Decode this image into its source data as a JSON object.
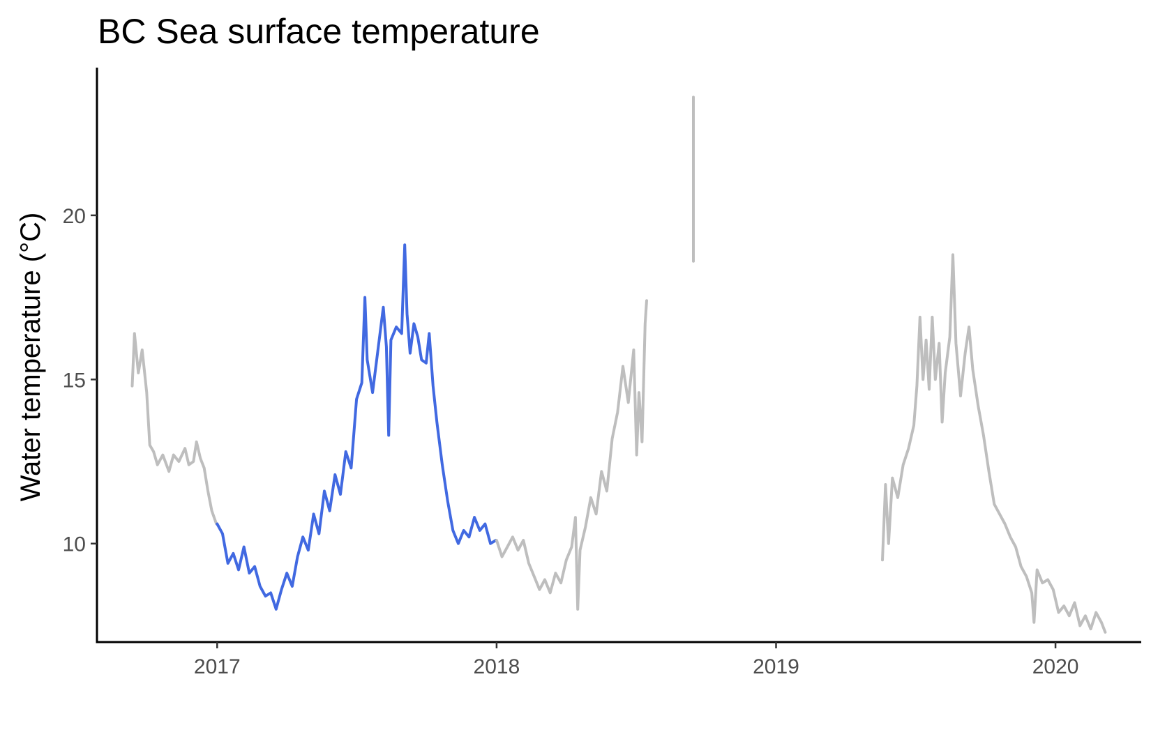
{
  "chart_data": {
    "type": "line",
    "title": "BC Sea surface temperature",
    "xlabel": "",
    "ylabel": "Water temperature  (°C)",
    "x_type": "date",
    "xlim": [
      "2016-07-28",
      "2020-04-22"
    ],
    "ylim": [
      7.0,
      24.5
    ],
    "x_ticks": [
      {
        "value": "2017-01-01",
        "label": "2017"
      },
      {
        "value": "2018-01-01",
        "label": "2018"
      },
      {
        "value": "2019-01-01",
        "label": "2019"
      },
      {
        "value": "2020-01-01",
        "label": "2020"
      }
    ],
    "y_ticks": [
      {
        "value": 10,
        "label": "10"
      },
      {
        "value": 15,
        "label": "15"
      },
      {
        "value": 20,
        "label": "20"
      }
    ],
    "grid": false,
    "legend": "none",
    "series": [
      {
        "color": "#bebebe",
        "points": [
          [
            "2016-09-12",
            14.8
          ],
          [
            "2016-09-15",
            16.4
          ],
          [
            "2016-09-20",
            15.2
          ],
          [
            "2016-09-25",
            15.9
          ],
          [
            "2016-10-01",
            14.6
          ],
          [
            "2016-10-05",
            13.0
          ],
          [
            "2016-10-10",
            12.8
          ],
          [
            "2016-10-15",
            12.4
          ],
          [
            "2016-10-22",
            12.7
          ],
          [
            "2016-10-30",
            12.2
          ],
          [
            "2016-11-05",
            12.7
          ],
          [
            "2016-11-12",
            12.5
          ],
          [
            "2016-11-20",
            12.9
          ],
          [
            "2016-11-25",
            12.4
          ],
          [
            "2016-12-01",
            12.5
          ],
          [
            "2016-12-05",
            13.1
          ],
          [
            "2016-12-10",
            12.6
          ],
          [
            "2016-12-15",
            12.3
          ],
          [
            "2016-12-20",
            11.6
          ],
          [
            "2016-12-25",
            11.0
          ],
          [
            "2016-12-31",
            10.6
          ]
        ]
      },
      {
        "color": "#4169e1",
        "points": [
          [
            "2017-01-01",
            10.6
          ],
          [
            "2017-01-08",
            10.3
          ],
          [
            "2017-01-15",
            9.4
          ],
          [
            "2017-01-22",
            9.7
          ],
          [
            "2017-01-29",
            9.2
          ],
          [
            "2017-02-05",
            9.9
          ],
          [
            "2017-02-12",
            9.1
          ],
          [
            "2017-02-19",
            9.3
          ],
          [
            "2017-02-26",
            8.7
          ],
          [
            "2017-03-05",
            8.4
          ],
          [
            "2017-03-12",
            8.5
          ],
          [
            "2017-03-19",
            8.0
          ],
          [
            "2017-03-26",
            8.6
          ],
          [
            "2017-04-02",
            9.1
          ],
          [
            "2017-04-09",
            8.7
          ],
          [
            "2017-04-16",
            9.6
          ],
          [
            "2017-04-23",
            10.2
          ],
          [
            "2017-04-30",
            9.8
          ],
          [
            "2017-05-07",
            10.9
          ],
          [
            "2017-05-14",
            10.3
          ],
          [
            "2017-05-21",
            11.6
          ],
          [
            "2017-05-28",
            11.0
          ],
          [
            "2017-06-04",
            12.1
          ],
          [
            "2017-06-11",
            11.5
          ],
          [
            "2017-06-18",
            12.8
          ],
          [
            "2017-06-25",
            12.3
          ],
          [
            "2017-07-02",
            14.4
          ],
          [
            "2017-07-09",
            14.9
          ],
          [
            "2017-07-13",
            17.5
          ],
          [
            "2017-07-16",
            15.6
          ],
          [
            "2017-07-23",
            14.6
          ],
          [
            "2017-07-30",
            15.9
          ],
          [
            "2017-08-06",
            17.2
          ],
          [
            "2017-08-10",
            16.0
          ],
          [
            "2017-08-13",
            13.3
          ],
          [
            "2017-08-16",
            16.2
          ],
          [
            "2017-08-23",
            16.6
          ],
          [
            "2017-08-30",
            16.4
          ],
          [
            "2017-09-03",
            19.1
          ],
          [
            "2017-09-06",
            17.0
          ],
          [
            "2017-09-10",
            15.8
          ],
          [
            "2017-09-15",
            16.7
          ],
          [
            "2017-09-20",
            16.3
          ],
          [
            "2017-09-25",
            15.6
          ],
          [
            "2017-10-01",
            15.5
          ],
          [
            "2017-10-05",
            16.4
          ],
          [
            "2017-10-10",
            14.8
          ],
          [
            "2017-10-15",
            13.7
          ],
          [
            "2017-10-22",
            12.4
          ],
          [
            "2017-10-29",
            11.3
          ],
          [
            "2017-11-05",
            10.4
          ],
          [
            "2017-11-12",
            10.0
          ],
          [
            "2017-11-19",
            10.4
          ],
          [
            "2017-11-26",
            10.2
          ],
          [
            "2017-12-03",
            10.8
          ],
          [
            "2017-12-10",
            10.4
          ],
          [
            "2017-12-17",
            10.6
          ],
          [
            "2017-12-24",
            10.0
          ],
          [
            "2017-12-31",
            10.1
          ]
        ]
      },
      {
        "color": "#bebebe",
        "points": [
          [
            "2018-01-01",
            10.1
          ],
          [
            "2018-01-08",
            9.6
          ],
          [
            "2018-01-15",
            9.9
          ],
          [
            "2018-01-22",
            10.2
          ],
          [
            "2018-01-29",
            9.8
          ],
          [
            "2018-02-05",
            10.1
          ],
          [
            "2018-02-12",
            9.4
          ],
          [
            "2018-02-19",
            9.0
          ],
          [
            "2018-02-26",
            8.6
          ],
          [
            "2018-03-05",
            8.9
          ],
          [
            "2018-03-12",
            8.5
          ],
          [
            "2018-03-19",
            9.1
          ],
          [
            "2018-03-26",
            8.8
          ],
          [
            "2018-04-02",
            9.5
          ],
          [
            "2018-04-09",
            9.9
          ],
          [
            "2018-04-14",
            10.8
          ],
          [
            "2018-04-17",
            8.0
          ],
          [
            "2018-04-20",
            9.8
          ],
          [
            "2018-04-27",
            10.5
          ],
          [
            "2018-05-04",
            11.4
          ],
          [
            "2018-05-11",
            10.9
          ],
          [
            "2018-05-18",
            12.2
          ],
          [
            "2018-05-25",
            11.6
          ],
          [
            "2018-06-01",
            13.2
          ],
          [
            "2018-06-08",
            14.0
          ],
          [
            "2018-06-15",
            15.4
          ],
          [
            "2018-06-22",
            14.3
          ],
          [
            "2018-06-29",
            15.9
          ],
          [
            "2018-07-03",
            12.7
          ],
          [
            "2018-07-06",
            14.6
          ],
          [
            "2018-07-10",
            13.1
          ],
          [
            "2018-07-14",
            16.7
          ],
          [
            "2018-07-16",
            17.4
          ]
        ]
      },
      {
        "color": "#bebebe",
        "points": [
          [
            "2018-09-15",
            18.6
          ],
          [
            "2018-09-15",
            23.6
          ]
        ]
      },
      {
        "color": "#bebebe",
        "points": [
          [
            "2019-05-20",
            9.5
          ],
          [
            "2019-05-24",
            11.8
          ],
          [
            "2019-05-28",
            10.0
          ],
          [
            "2019-06-02",
            12.0
          ],
          [
            "2019-06-09",
            11.4
          ],
          [
            "2019-06-16",
            12.4
          ],
          [
            "2019-06-23",
            12.9
          ],
          [
            "2019-06-30",
            13.6
          ],
          [
            "2019-07-04",
            14.8
          ],
          [
            "2019-07-08",
            16.9
          ],
          [
            "2019-07-12",
            15.0
          ],
          [
            "2019-07-16",
            16.2
          ],
          [
            "2019-07-20",
            14.7
          ],
          [
            "2019-07-24",
            16.9
          ],
          [
            "2019-07-28",
            15.0
          ],
          [
            "2019-08-02",
            16.1
          ],
          [
            "2019-08-06",
            13.7
          ],
          [
            "2019-08-10",
            15.2
          ],
          [
            "2019-08-16",
            16.3
          ],
          [
            "2019-08-20",
            18.8
          ],
          [
            "2019-08-24",
            16.1
          ],
          [
            "2019-08-30",
            14.5
          ],
          [
            "2019-09-05",
            15.8
          ],
          [
            "2019-09-10",
            16.6
          ],
          [
            "2019-09-15",
            15.3
          ],
          [
            "2019-09-22",
            14.2
          ],
          [
            "2019-09-29",
            13.3
          ],
          [
            "2019-10-06",
            12.2
          ],
          [
            "2019-10-13",
            11.2
          ],
          [
            "2019-10-20",
            10.9
          ],
          [
            "2019-10-27",
            10.6
          ],
          [
            "2019-11-03",
            10.2
          ],
          [
            "2019-11-10",
            9.9
          ],
          [
            "2019-11-17",
            9.3
          ],
          [
            "2019-11-24",
            9.0
          ],
          [
            "2019-12-01",
            8.5
          ],
          [
            "2019-12-04",
            7.6
          ],
          [
            "2019-12-08",
            9.2
          ],
          [
            "2019-12-15",
            8.8
          ],
          [
            "2019-12-22",
            8.9
          ],
          [
            "2019-12-29",
            8.6
          ],
          [
            "2020-01-05",
            7.9
          ],
          [
            "2020-01-12",
            8.1
          ],
          [
            "2020-01-19",
            7.8
          ],
          [
            "2020-01-26",
            8.2
          ],
          [
            "2020-02-02",
            7.5
          ],
          [
            "2020-02-09",
            7.8
          ],
          [
            "2020-02-16",
            7.4
          ],
          [
            "2020-02-23",
            7.9
          ],
          [
            "2020-03-01",
            7.6
          ],
          [
            "2020-03-06",
            7.3
          ]
        ]
      }
    ]
  }
}
